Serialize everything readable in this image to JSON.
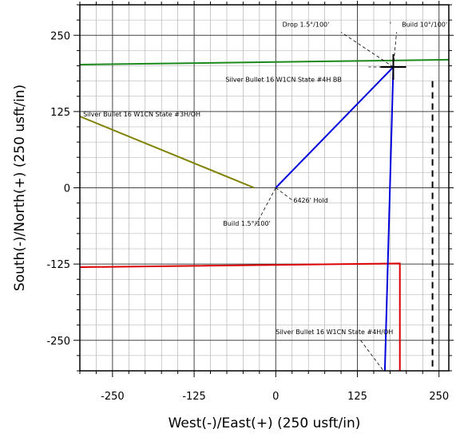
{
  "chart_data": {
    "type": "line",
    "title": "",
    "xlabel": "West(-)/East(+) (250 usft/in)",
    "ylabel": "South(-)/North(+) (250 usft/in)",
    "xlim": [
      -300,
      265
    ],
    "ylim": [
      -300,
      300
    ],
    "x_ticks": [
      -250,
      -125,
      0,
      125,
      250
    ],
    "y_ticks": [
      250,
      125,
      0,
      -125,
      -250
    ],
    "x_tick_labels": [
      "-250",
      "-125",
      "0",
      "125",
      "250"
    ],
    "y_tick_labels": [
      "250",
      "125",
      "0",
      "-125",
      "-250"
    ],
    "grid": true,
    "series": [
      {
        "color": "#1a8a1a",
        "points": [
          [
            -300,
            202
          ],
          [
            265,
            210
          ]
        ]
      },
      {
        "color": "#808000",
        "points": [
          [
            -300,
            117
          ],
          [
            -33,
            0
          ]
        ]
      },
      {
        "color": "#dd0000",
        "points": [
          [
            -300,
            -130
          ],
          [
            190,
            -124
          ],
          [
            190,
            -300
          ]
        ]
      },
      {
        "color": "#0000dd",
        "points": [
          [
            0,
            0
          ],
          [
            180,
            198
          ],
          [
            167,
            -300
          ]
        ]
      },
      {
        "color": "#000000",
        "dash": "8,6",
        "points": [
          [
            240,
            175
          ],
          [
            240,
            -300
          ]
        ]
      }
    ],
    "guides": [
      {
        "points": [
          [
            180,
            198
          ],
          [
            100,
            255
          ]
        ]
      },
      {
        "points": [
          [
            180,
            198
          ],
          [
            185,
            255
          ]
        ]
      },
      {
        "points": [
          [
            0,
            0
          ],
          [
            25,
            -20
          ]
        ]
      },
      {
        "points": [
          [
            0,
            0
          ],
          [
            -30,
            -60
          ]
        ]
      },
      {
        "points": [
          [
            180,
            198
          ],
          [
            142,
            198
          ]
        ]
      },
      {
        "points": [
          [
            130,
            -250
          ],
          [
            165,
            -300
          ]
        ]
      }
    ],
    "markers": [
      {
        "type": "cross",
        "x": 180,
        "y": 198
      }
    ],
    "annotations": [
      {
        "text": "Drop 1.5°/100'",
        "x": 82,
        "y": 264,
        "color": "#000000",
        "anchor": "end"
      },
      {
        "text": "'",
        "x": 177,
        "y": 264,
        "color": "#000000",
        "anchor": "end"
      },
      {
        "text": "Build 10°/100'",
        "x": 193,
        "y": 264,
        "color": "#000000",
        "anchor": "start"
      },
      {
        "text": "Silver Bullet 16 W1CN State #4H BB",
        "x": 101,
        "y": 174,
        "color": "#000000",
        "anchor": "end"
      },
      {
        "text": "Silver Bullet 16 W1CN State #3H/OH",
        "x": -295,
        "y": 117,
        "color": "#808000",
        "anchor": "start"
      },
      {
        "text": "6426' Hold",
        "x": 27,
        "y": -24,
        "color": "#000000",
        "anchor": "start"
      },
      {
        "text": "Build 1.5°/100'",
        "x": -8,
        "y": -62,
        "color": "#000000",
        "anchor": "end"
      },
      {
        "text": "Silver Bullet 16 W1CN State #4H/OH",
        "x": 0,
        "y": -240,
        "color": "#0000dd",
        "anchor": "start"
      }
    ]
  }
}
